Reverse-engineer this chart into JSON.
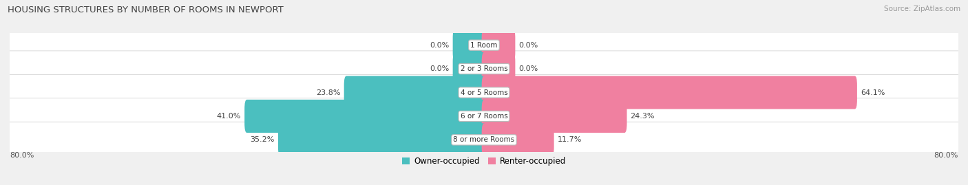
{
  "title": "HOUSING STRUCTURES BY NUMBER OF ROOMS IN NEWPORT",
  "source": "Source: ZipAtlas.com",
  "categories": [
    "1 Room",
    "2 or 3 Rooms",
    "4 or 5 Rooms",
    "6 or 7 Rooms",
    "8 or more Rooms"
  ],
  "owner_values": [
    0.0,
    0.0,
    23.8,
    41.0,
    35.2
  ],
  "renter_values": [
    0.0,
    0.0,
    64.1,
    24.3,
    11.7
  ],
  "owner_color": "#4BBFBF",
  "renter_color": "#F080A0",
  "bg_color": "#F0F0F0",
  "row_bg_color": "#E8E8E8",
  "xlim_left": -82,
  "xlim_right": 82,
  "axis_left_label": "80.0%",
  "axis_right_label": "80.0%",
  "bar_height": 0.6,
  "small_bar_size": 5.0
}
